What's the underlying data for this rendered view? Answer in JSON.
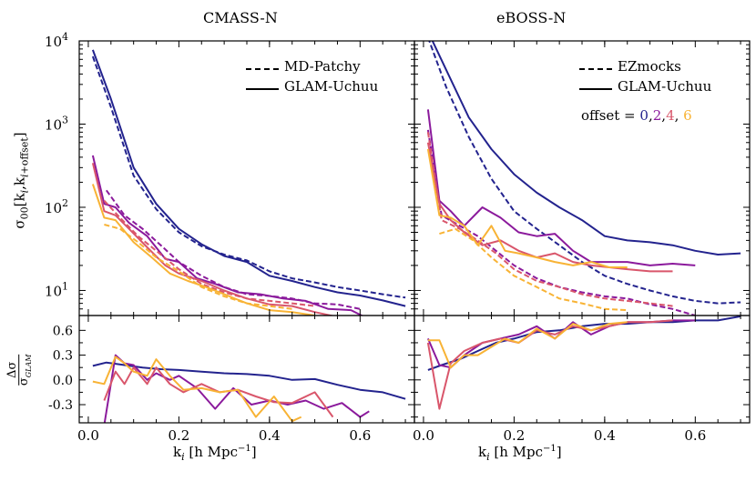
{
  "chart_data": [
    {
      "panel": "top-left",
      "title": "CMASS-N",
      "type": "line",
      "yscale": "log",
      "ylim": [
        5,
        10000
      ],
      "xlim": [
        -0.02,
        0.72
      ],
      "ylabel": "σ00[ki,ki+offset]",
      "legend": {
        "placement": "top-right",
        "entries": [
          {
            "style": "dashed",
            "label": "MD-Patchy"
          },
          {
            "style": "solid",
            "label": "GLAM-Uchuu"
          }
        ]
      },
      "series": [
        {
          "offset": "0",
          "style": "solid",
          "color": "#23238e",
          "x": [
            0.01,
            0.05,
            0.1,
            0.15,
            0.2,
            0.25,
            0.3,
            0.35,
            0.4,
            0.45,
            0.5,
            0.55,
            0.6,
            0.65,
            0.7
          ],
          "y": [
            7800,
            2000,
            300,
            110,
            55,
            36,
            26,
            22,
            15,
            13,
            11,
            9.5,
            8.7,
            7.6,
            6.5
          ]
        },
        {
          "offset": "0",
          "style": "dashed",
          "color": "#23238e",
          "x": [
            0.01,
            0.05,
            0.1,
            0.15,
            0.2,
            0.25,
            0.3,
            0.35,
            0.4,
            0.45,
            0.5,
            0.55,
            0.6,
            0.65,
            0.7
          ],
          "y": [
            6500,
            1600,
            240,
            95,
            50,
            34,
            27,
            23,
            17,
            14,
            12.5,
            11,
            10,
            9,
            8.2
          ]
        },
        {
          "offset": "2",
          "style": "solid",
          "color": "#8b1a9c",
          "x": [
            0.01,
            0.035,
            0.06,
            0.09,
            0.13,
            0.17,
            0.2,
            0.24,
            0.28,
            0.33,
            0.38,
            0.43,
            0.48,
            0.53,
            0.58,
            0.62
          ],
          "y": [
            420,
            110,
            100,
            65,
            45,
            24,
            22,
            14,
            12,
            9.5,
            9,
            8,
            7.5,
            6,
            5.8,
            4.5
          ]
        },
        {
          "offset": "2",
          "style": "dashed",
          "color": "#8b1a9c",
          "x": [
            0.04,
            0.08,
            0.12,
            0.16,
            0.2,
            0.25,
            0.3,
            0.35,
            0.4,
            0.45,
            0.5,
            0.55,
            0.6
          ],
          "y": [
            160,
            80,
            55,
            35,
            22,
            15,
            11,
            9,
            8.6,
            8,
            7,
            6.8,
            6
          ]
        },
        {
          "offset": "4",
          "style": "solid",
          "color": "#d9566b",
          "x": [
            0.01,
            0.035,
            0.06,
            0.09,
            0.13,
            0.17,
            0.2,
            0.25,
            0.3,
            0.35,
            0.4,
            0.45,
            0.5,
            0.55
          ],
          "y": [
            340,
            90,
            80,
            55,
            33,
            20,
            16,
            13,
            10,
            8,
            6.8,
            6.5,
            5.5,
            4.8
          ]
        },
        {
          "offset": "4",
          "style": "dashed",
          "color": "#d9566b",
          "x": [
            0.035,
            0.07,
            0.11,
            0.15,
            0.2,
            0.25,
            0.3,
            0.35,
            0.4,
            0.45,
            0.5
          ],
          "y": [
            120,
            75,
            45,
            30,
            18,
            12,
            9.5,
            8,
            7.5,
            7,
            6.5
          ]
        },
        {
          "offset": "6",
          "style": "solid",
          "color": "#f8b335",
          "x": [
            0.01,
            0.035,
            0.06,
            0.1,
            0.14,
            0.18,
            0.22,
            0.26,
            0.3,
            0.35,
            0.4,
            0.45,
            0.5
          ],
          "y": [
            190,
            75,
            70,
            38,
            25,
            16,
            13,
            11,
            9,
            7,
            5.8,
            5.5,
            5
          ]
        },
        {
          "offset": "6",
          "style": "dashed",
          "color": "#f8b335",
          "x": [
            0.035,
            0.07,
            0.11,
            0.15,
            0.2,
            0.25,
            0.3,
            0.35,
            0.4,
            0.45
          ],
          "y": [
            62,
            55,
            38,
            25,
            17,
            11,
            8.5,
            7,
            6.5,
            6
          ]
        }
      ]
    },
    {
      "panel": "top-right",
      "title": "eBOSS-N",
      "type": "line",
      "yscale": "log",
      "ylim": [
        5,
        10000
      ],
      "xlim": [
        -0.02,
        0.72
      ],
      "legend": {
        "placement": "top-right",
        "entries": [
          {
            "style": "dashed",
            "label": "EZmocks"
          },
          {
            "style": "solid",
            "label": "GLAM-Uchuu"
          }
        ]
      },
      "annotation": {
        "prefix": "offset = ",
        "values": [
          "0",
          "2",
          "4",
          "6"
        ]
      },
      "series": [
        {
          "offset": "0",
          "style": "solid",
          "color": "#23238e",
          "x": [
            0.01,
            0.05,
            0.1,
            0.15,
            0.2,
            0.25,
            0.3,
            0.35,
            0.4,
            0.45,
            0.5,
            0.55,
            0.6,
            0.65,
            0.7
          ],
          "y": [
            13000,
            4500,
            1200,
            500,
            250,
            150,
            100,
            70,
            45,
            40,
            38,
            35,
            30,
            27,
            28
          ]
        },
        {
          "offset": "0",
          "style": "dashed",
          "color": "#23238e",
          "x": [
            0.01,
            0.05,
            0.1,
            0.15,
            0.2,
            0.25,
            0.3,
            0.35,
            0.4,
            0.45,
            0.5,
            0.55,
            0.6,
            0.65,
            0.7
          ],
          "y": [
            11000,
            2800,
            700,
            220,
            90,
            55,
            35,
            22,
            15,
            12,
            10,
            8.5,
            7.5,
            7,
            7.2
          ]
        },
        {
          "offset": "2",
          "style": "solid",
          "color": "#8b1a9c",
          "x": [
            0.01,
            0.035,
            0.06,
            0.09,
            0.13,
            0.17,
            0.21,
            0.25,
            0.29,
            0.33,
            0.37,
            0.41,
            0.45,
            0.5,
            0.55,
            0.6
          ],
          "y": [
            1500,
            120,
            90,
            60,
            100,
            75,
            50,
            45,
            48,
            30,
            22,
            22,
            22,
            20,
            21,
            20
          ]
        },
        {
          "offset": "2",
          "style": "dashed",
          "color": "#8b1a9c",
          "x": [
            0.01,
            0.04,
            0.08,
            0.12,
            0.16,
            0.2,
            0.25,
            0.3,
            0.35,
            0.4,
            0.45,
            0.5,
            0.55,
            0.6
          ],
          "y": [
            850,
            80,
            60,
            45,
            30,
            20,
            14,
            11,
            9.5,
            8.5,
            8,
            6.8,
            6,
            5
          ]
        },
        {
          "offset": "4",
          "style": "solid",
          "color": "#d9566b",
          "x": [
            0.01,
            0.035,
            0.06,
            0.09,
            0.13,
            0.17,
            0.21,
            0.25,
            0.29,
            0.33,
            0.37,
            0.41,
            0.45,
            0.5,
            0.55
          ],
          "y": [
            600,
            110,
            70,
            50,
            35,
            40,
            30,
            25,
            28,
            22,
            20,
            19,
            18,
            17,
            17
          ]
        },
        {
          "offset": "4",
          "style": "dashed",
          "color": "#d9566b",
          "x": [
            0.01,
            0.04,
            0.08,
            0.12,
            0.16,
            0.2,
            0.25,
            0.3,
            0.35,
            0.4,
            0.45,
            0.5,
            0.55
          ],
          "y": [
            800,
            70,
            55,
            40,
            28,
            18,
            13,
            11,
            9,
            8,
            7.5,
            7,
            6.5
          ]
        },
        {
          "offset": "6",
          "style": "solid",
          "color": "#f8b335",
          "x": [
            0.01,
            0.035,
            0.06,
            0.09,
            0.12,
            0.15,
            0.18,
            0.21,
            0.25,
            0.29,
            0.33,
            0.37,
            0.41,
            0.45
          ],
          "y": [
            500,
            80,
            75,
            60,
            35,
            60,
            30,
            28,
            25,
            22,
            20,
            22,
            19,
            19
          ]
        },
        {
          "offset": "6",
          "style": "dashed",
          "color": "#f8b335",
          "x": [
            0.035,
            0.07,
            0.11,
            0.15,
            0.2,
            0.25,
            0.3,
            0.35,
            0.4,
            0.45
          ],
          "y": [
            48,
            55,
            40,
            25,
            15,
            11,
            8,
            7,
            6,
            5.8
          ]
        }
      ]
    },
    {
      "panel": "bottom-left",
      "type": "line",
      "ylim": [
        -0.52,
        0.78
      ],
      "xlim": [
        -0.02,
        0.72
      ],
      "yticks": [
        "0.6",
        "0.3",
        "0.0",
        "-0.3"
      ],
      "xticks": [
        "0.0",
        "0.2",
        "0.4",
        "0.6"
      ],
      "xlabel": "ki [h Mpc−1]",
      "ylabel": "Δσ / σGLAM",
      "series": [
        {
          "offset": "0",
          "color": "#23238e",
          "x": [
            0.01,
            0.04,
            0.08,
            0.12,
            0.16,
            0.2,
            0.25,
            0.3,
            0.35,
            0.4,
            0.45,
            0.5,
            0.55,
            0.6,
            0.65,
            0.7
          ],
          "y": [
            0.17,
            0.21,
            0.18,
            0.15,
            0.13,
            0.12,
            0.1,
            0.08,
            0.07,
            0.05,
            0.0,
            0.01,
            -0.06,
            -0.12,
            -0.15,
            -0.23
          ]
        },
        {
          "offset": "2",
          "color": "#8b1a9c",
          "x": [
            0.035,
            0.06,
            0.08,
            0.1,
            0.13,
            0.15,
            0.18,
            0.2,
            0.24,
            0.28,
            0.32,
            0.36,
            0.4,
            0.44,
            0.48,
            0.52,
            0.56,
            0.6,
            0.62
          ],
          "y": [
            -0.55,
            0.3,
            0.2,
            0.18,
            0.0,
            0.08,
            0.0,
            0.05,
            -0.1,
            -0.35,
            -0.1,
            -0.3,
            -0.25,
            -0.3,
            -0.25,
            -0.35,
            -0.28,
            -0.45,
            -0.38
          ]
        },
        {
          "offset": "4",
          "color": "#d9566b",
          "x": [
            0.035,
            0.06,
            0.08,
            0.1,
            0.13,
            0.15,
            0.18,
            0.21,
            0.25,
            0.29,
            0.33,
            0.37,
            0.41,
            0.45,
            0.5,
            0.54
          ],
          "y": [
            -0.25,
            0.1,
            -0.05,
            0.15,
            -0.05,
            0.15,
            -0.05,
            -0.15,
            -0.05,
            -0.15,
            -0.12,
            -0.2,
            -0.27,
            -0.28,
            -0.15,
            -0.45
          ]
        },
        {
          "offset": "6",
          "color": "#f8b335",
          "x": [
            0.01,
            0.035,
            0.06,
            0.08,
            0.1,
            0.13,
            0.15,
            0.18,
            0.21,
            0.25,
            0.29,
            0.33,
            0.37,
            0.41,
            0.45,
            0.47
          ],
          "y": [
            -0.02,
            -0.05,
            0.28,
            0.2,
            0.1,
            0.05,
            0.25,
            0.05,
            -0.12,
            -0.1,
            -0.15,
            -0.12,
            -0.45,
            -0.2,
            -0.5,
            -0.45
          ]
        }
      ]
    },
    {
      "panel": "bottom-right",
      "type": "line",
      "ylim": [
        -0.52,
        0.78
      ],
      "xlim": [
        -0.02,
        0.72
      ],
      "xticks": [
        "0.0",
        "0.2",
        "0.4",
        "0.6"
      ],
      "xlabel": "ki [h Mpc−1]",
      "series": [
        {
          "offset": "0",
          "color": "#23238e",
          "x": [
            0.01,
            0.04,
            0.08,
            0.12,
            0.16,
            0.2,
            0.25,
            0.3,
            0.35,
            0.4,
            0.45,
            0.5,
            0.55,
            0.6,
            0.65,
            0.7
          ],
          "y": [
            0.12,
            0.18,
            0.25,
            0.35,
            0.45,
            0.5,
            0.58,
            0.6,
            0.65,
            0.68,
            0.68,
            0.7,
            0.7,
            0.72,
            0.72,
            0.77
          ]
        },
        {
          "offset": "2",
          "color": "#8b1a9c",
          "x": [
            0.01,
            0.035,
            0.06,
            0.09,
            0.13,
            0.17,
            0.21,
            0.25,
            0.29,
            0.33,
            0.37,
            0.41,
            0.45,
            0.5,
            0.55,
            0.6
          ],
          "y": [
            0.5,
            0.18,
            0.15,
            0.3,
            0.45,
            0.5,
            0.55,
            0.65,
            0.5,
            0.7,
            0.55,
            0.65,
            0.7,
            0.7,
            0.72,
            0.72
          ]
        },
        {
          "offset": "4",
          "color": "#d9566b",
          "x": [
            0.01,
            0.035,
            0.06,
            0.09,
            0.13,
            0.17,
            0.21,
            0.25,
            0.29,
            0.33,
            0.37,
            0.41,
            0.45,
            0.5,
            0.55
          ],
          "y": [
            0.45,
            -0.35,
            0.2,
            0.35,
            0.45,
            0.5,
            0.45,
            0.6,
            0.55,
            0.65,
            0.6,
            0.65,
            0.7,
            0.7,
            0.72
          ]
        },
        {
          "offset": "6",
          "color": "#f8b335",
          "x": [
            0.01,
            0.035,
            0.06,
            0.09,
            0.12,
            0.15,
            0.18,
            0.21,
            0.25,
            0.29,
            0.33,
            0.37,
            0.41,
            0.45
          ],
          "y": [
            0.48,
            0.48,
            0.15,
            0.3,
            0.3,
            0.4,
            0.5,
            0.45,
            0.62,
            0.5,
            0.68,
            0.6,
            0.68,
            0.7
          ]
        }
      ]
    }
  ]
}
